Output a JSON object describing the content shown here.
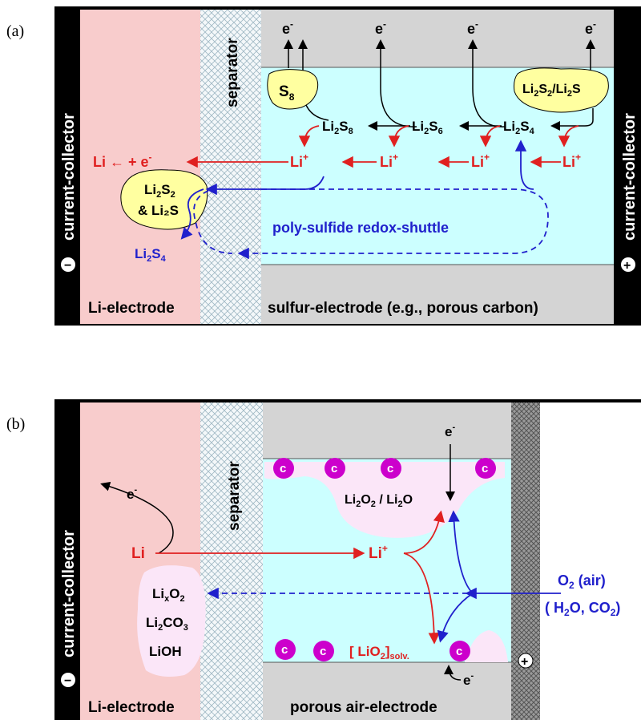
{
  "panel_a": {
    "label": "(a)",
    "left_collector": "current-collector",
    "right_collector": "current-collector",
    "minus_sign": "−",
    "plus_sign": "+",
    "separator": "separator",
    "li_electrode": "Li-electrode",
    "sulfur_electrode": "sulfur-electrode (e.g., porous carbon)",
    "electron": "e",
    "electron_sup": "-",
    "s8": "S",
    "s8_sub": "8",
    "li2s2_li2s_box": [
      "Li",
      "2",
      "S",
      "2",
      "/Li",
      "2",
      "S"
    ],
    "li2s8": [
      "Li",
      "2",
      "S",
      "8"
    ],
    "li2s6": [
      "Li",
      "2",
      "S",
      "6"
    ],
    "li2s4": [
      "Li",
      "2",
      "S",
      "4"
    ],
    "li_plus": [
      "Li",
      "+"
    ],
    "li_reaction": [
      "Li ← + e",
      "-"
    ],
    "deposit_line1": [
      "Li",
      "2",
      "S",
      "2"
    ],
    "deposit_line2": "& Li₂S",
    "shuttle_label": "poly-sulfide redox-shuttle",
    "li2s4_left": [
      "Li",
      "2",
      "S",
      "4"
    ]
  },
  "panel_b": {
    "label": "(b)",
    "left_collector": "current-collector",
    "minus_sign": "−",
    "plus_sign": "+",
    "separator": "separator",
    "li_electrode": "Li-electrode",
    "air_electrode": "porous air-electrode",
    "electron": "e",
    "electron_sup": "-",
    "carbon": "c",
    "li": "Li",
    "li_plus": [
      "Li",
      "+"
    ],
    "li2o2_li2o": [
      "Li",
      "2",
      "O",
      "2",
      " / Li",
      "2",
      "O"
    ],
    "lixo2": [
      "Li",
      "x",
      "O",
      "2"
    ],
    "li2co3": [
      "Li",
      "2",
      "CO",
      "3"
    ],
    "lioh": "LiOH",
    "lio2_solv": [
      "[ LiO",
      "2",
      "]",
      "solv."
    ],
    "o2_air": [
      "O",
      "2",
      " (air)"
    ],
    "h2o_co2": [
      "( H",
      "2",
      "O, CO",
      "2",
      ")"
    ]
  },
  "colors": {
    "li_electrode": "#f8cccc",
    "electrolyte": "#ccffff",
    "gray": "#d4d4d4",
    "deposit": "#ffffa0",
    "red": "#e02020",
    "blue": "#2020cc",
    "magenta": "#cc00cc",
    "black": "#000000"
  }
}
